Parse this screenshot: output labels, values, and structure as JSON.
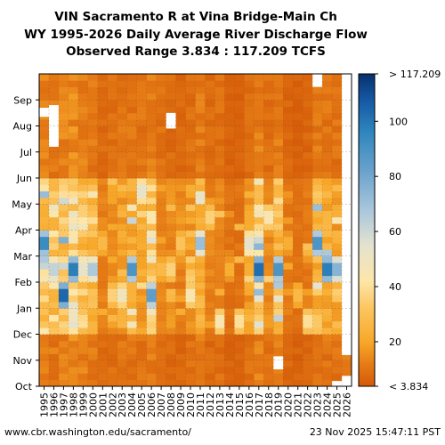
{
  "title_lines": [
    "VIN Sacramento R at Vina Bridge-Main Ch",
    "WY 1995-2026 Daily Average River Discharge Flow",
    "Observed Range 3.834 : 117.209 TCFS"
  ],
  "footer": {
    "url": "www.cbr.washington.edu/sacramento/",
    "timestamp": "23 Nov 2025 15:47:11 PST"
  },
  "chart_data": {
    "type": "heatmap",
    "title": "VIN Sacramento R at Vina Bridge-Main Ch",
    "subtitle": "WY 1995-2026 Daily Average River Discharge Flow",
    "observed_range_label": "Observed Range 3.834 : 117.209 TCFS",
    "x_tick_labels": [
      "1995",
      "1996",
      "1997",
      "1998",
      "1999",
      "2000",
      "2001",
      "2002",
      "2003",
      "2004",
      "2005",
      "2006",
      "2007",
      "2008",
      "2009",
      "2010",
      "2011",
      "2012",
      "2013",
      "2014",
      "2015",
      "2016",
      "2017",
      "2018",
      "2019",
      "2020",
      "2021",
      "2022",
      "2023",
      "2024",
      "2025",
      "2026"
    ],
    "y_tick_labels": [
      "Oct",
      "Nov",
      "Dec",
      "Jan",
      "Feb",
      "Mar",
      "Apr",
      "May",
      "Jun",
      "Jul",
      "Aug",
      "Sep"
    ],
    "value_range": [
      3.834,
      117.209
    ],
    "colorbar": {
      "ticks": [
        20,
        40,
        60,
        80,
        100
      ],
      "top_label": "> 117.209",
      "bottom_label": "< 3.834",
      "stops": [
        {
          "value": 3.834,
          "color": "#d45a08"
        },
        {
          "value": 12,
          "color": "#e67c16"
        },
        {
          "value": 20,
          "color": "#f7a829"
        },
        {
          "value": 32,
          "color": "#fcc55f"
        },
        {
          "value": 42,
          "color": "#fde6a8"
        },
        {
          "value": 55,
          "color": "#e4e2cf"
        },
        {
          "value": 68,
          "color": "#a8c6dc"
        },
        {
          "value": 82,
          "color": "#6aa2cc"
        },
        {
          "value": 96,
          "color": "#2f86be"
        },
        {
          "value": 108,
          "color": "#1457a3"
        },
        {
          "value": 117.209,
          "color": "#08306b"
        }
      ]
    },
    "grid": true,
    "wet_season_months": [
      "Dec",
      "Jan",
      "Feb",
      "Mar",
      "Apr",
      "May"
    ],
    "years": [
      {
        "year": "1995",
        "base": 12,
        "wet": 38,
        "peak": 105,
        "peak_month": "Mar"
      },
      {
        "year": "1996",
        "base": 11,
        "wet": 30,
        "peak": 70,
        "peak_month": "Feb"
      },
      {
        "year": "1997",
        "base": 13,
        "wet": 34,
        "peak": 117,
        "peak_month": "Jan"
      },
      {
        "year": "1998",
        "base": 14,
        "wet": 44,
        "peak": 110,
        "peak_month": "Feb"
      },
      {
        "year": "1999",
        "base": 12,
        "wet": 32,
        "peak": 60,
        "peak_month": "Feb"
      },
      {
        "year": "2000",
        "base": 11,
        "wet": 30,
        "peak": 75,
        "peak_month": "Feb"
      },
      {
        "year": "2001",
        "base": 8,
        "wet": 14,
        "peak": 30,
        "peak_month": "Mar"
      },
      {
        "year": "2002",
        "base": 9,
        "wet": 18,
        "peak": 40,
        "peak_month": "Jan"
      },
      {
        "year": "2003",
        "base": 10,
        "wet": 22,
        "peak": 55,
        "peak_month": "Jan"
      },
      {
        "year": "2004",
        "base": 10,
        "wet": 24,
        "peak": 100,
        "peak_month": "Feb"
      },
      {
        "year": "2005",
        "base": 10,
        "wet": 20,
        "peak": 60,
        "peak_month": "May"
      },
      {
        "year": "2006",
        "base": 12,
        "wet": 36,
        "peak": 95,
        "peak_month": "Jan"
      },
      {
        "year": "2007",
        "base": 9,
        "wet": 14,
        "peak": 30,
        "peak_month": "Feb"
      },
      {
        "year": "2008",
        "base": 8,
        "wet": 16,
        "peak": 40,
        "peak_month": "Feb"
      },
      {
        "year": "2009",
        "base": 7,
        "wet": 14,
        "peak": 35,
        "peak_month": "Mar"
      },
      {
        "year": "2010",
        "base": 9,
        "wet": 20,
        "peak": 50,
        "peak_month": "Jan"
      },
      {
        "year": "2011",
        "base": 11,
        "wet": 26,
        "peak": 80,
        "peak_month": "Mar"
      },
      {
        "year": "2012",
        "base": 8,
        "wet": 14,
        "peak": 40,
        "peak_month": "Apr"
      },
      {
        "year": "2013",
        "base": 9,
        "wet": 14,
        "peak": 50,
        "peak_month": "Dec"
      },
      {
        "year": "2014",
        "base": 6,
        "wet": 10,
        "peak": 25,
        "peak_month": "Feb"
      },
      {
        "year": "2015",
        "base": 6,
        "wet": 10,
        "peak": 45,
        "peak_month": "Dec"
      },
      {
        "year": "2016",
        "base": 9,
        "wet": 20,
        "peak": 60,
        "peak_month": "Mar"
      },
      {
        "year": "2017",
        "base": 12,
        "wet": 40,
        "peak": 115,
        "peak_month": "Feb"
      },
      {
        "year": "2018",
        "base": 9,
        "wet": 16,
        "peak": 50,
        "peak_month": "Apr"
      },
      {
        "year": "2019",
        "base": 11,
        "wet": 30,
        "peak": 100,
        "peak_month": "Feb"
      },
      {
        "year": "2020",
        "base": 7,
        "wet": 12,
        "peak": 25,
        "peak_month": "Mar"
      },
      {
        "year": "2021",
        "base": 6,
        "wet": 10,
        "peak": 30,
        "peak_month": "Jan"
      },
      {
        "year": "2022",
        "base": 7,
        "wet": 12,
        "peak": 45,
        "peak_month": "Dec"
      },
      {
        "year": "2023",
        "base": 11,
        "wet": 28,
        "peak": 100,
        "peak_month": "Mar"
      },
      {
        "year": "2024",
        "base": 10,
        "wet": 24,
        "peak": 110,
        "peak_month": "Feb"
      },
      {
        "year": "2025",
        "base": 10,
        "wet": 22,
        "peak": 85,
        "peak_month": "Feb"
      },
      {
        "year": "2026",
        "base": 9,
        "wet": 12,
        "peak": 20,
        "peak_month": "Nov"
      }
    ]
  }
}
